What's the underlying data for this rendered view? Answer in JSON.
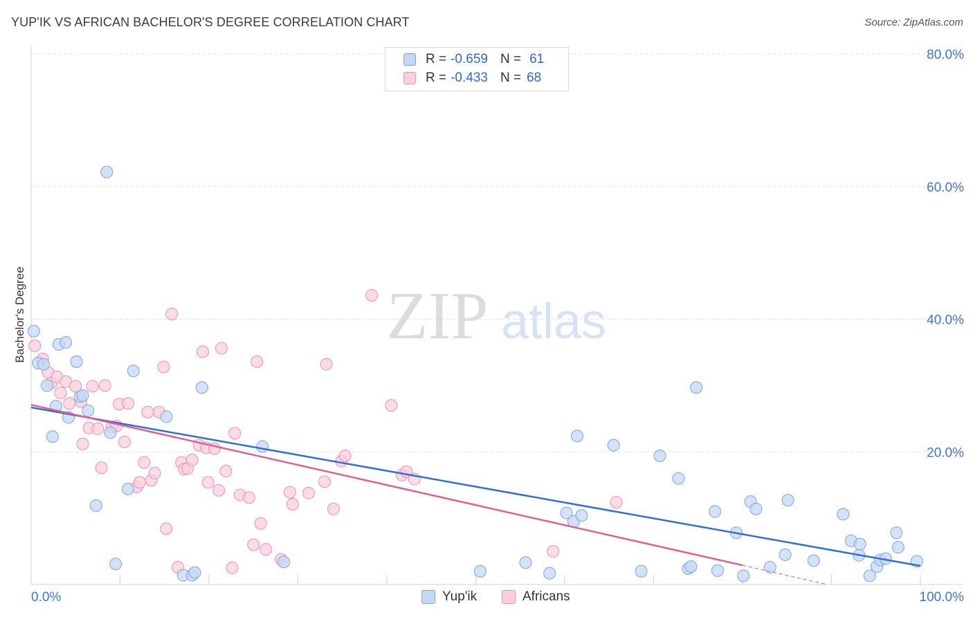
{
  "title": "YUP'IK VS AFRICAN BACHELOR'S DEGREE CORRELATION CHART",
  "source": "Source: ZipAtlas.com",
  "watermark": {
    "zip": "ZIP",
    "atlas": "atlas"
  },
  "legend": {
    "rows": [
      {
        "r_label": "R =",
        "r_value": "-0.659",
        "n_label": "N =",
        "n_value": "61",
        "fill": "#c5d8f5",
        "stroke": "#7aa3e0"
      },
      {
        "r_label": "R =",
        "r_value": "-0.433",
        "n_label": "N =",
        "n_value": "68",
        "fill": "#f9cfdd",
        "stroke": "#ee8fb0"
      }
    ]
  },
  "bottom_legend": [
    {
      "label": "Yup'ik",
      "fill": "#c5d8f5",
      "stroke": "#7aa3e0"
    },
    {
      "label": "Africans",
      "fill": "#f9cfdd",
      "stroke": "#ee8fb0"
    }
  ],
  "chart_data": {
    "type": "scatter",
    "title": "YUP'IK VS AFRICAN BACHELOR'S DEGREE CORRELATION CHART",
    "xlabel": "",
    "ylabel": "Bachelor's Degree",
    "xlim": [
      0,
      100
    ],
    "ylim": [
      0,
      80
    ],
    "x_tick_labels": [
      "0.0%",
      "100.0%"
    ],
    "y_ticks": [
      20,
      40,
      60,
      80
    ],
    "y_tick_labels": [
      "20.0%",
      "40.0%",
      "60.0%",
      "80.0%"
    ],
    "grid": true,
    "legend_position": "top-center",
    "series": [
      {
        "name": "Yup'ik",
        "color": "#7aa3e0",
        "fill": "#c5d8f5",
        "line_color": "#2f6fd4",
        "trend": {
          "x": [
            0,
            100
          ],
          "y": [
            26.7,
            2.8
          ]
        },
        "points": [
          [
            0.3,
            38.2
          ],
          [
            0.8,
            33.4
          ],
          [
            1.4,
            33.2
          ],
          [
            1.8,
            30.0
          ],
          [
            2.4,
            22.3
          ],
          [
            2.8,
            26.9
          ],
          [
            3.1,
            36.2
          ],
          [
            3.9,
            36.5
          ],
          [
            4.2,
            25.2
          ],
          [
            5.1,
            33.6
          ],
          [
            5.5,
            28.3
          ],
          [
            5.8,
            28.5
          ],
          [
            6.4,
            26.2
          ],
          [
            7.3,
            11.9
          ],
          [
            8.5,
            62.2
          ],
          [
            8.9,
            22.9
          ],
          [
            9.5,
            3.1
          ],
          [
            10.9,
            14.4
          ],
          [
            11.5,
            32.2
          ],
          [
            15.2,
            25.3
          ],
          [
            17.1,
            1.4
          ],
          [
            18.1,
            1.4
          ],
          [
            18.4,
            1.8
          ],
          [
            19.2,
            29.7
          ],
          [
            26.0,
            20.8
          ],
          [
            28.4,
            3.4
          ],
          [
            50.5,
            2.0
          ],
          [
            55.6,
            3.3
          ],
          [
            58.3,
            1.7
          ],
          [
            60.2,
            10.8
          ],
          [
            61.0,
            9.5
          ],
          [
            61.4,
            22.4
          ],
          [
            61.9,
            10.4
          ],
          [
            65.5,
            21.0
          ],
          [
            68.6,
            2.0
          ],
          [
            70.7,
            19.4
          ],
          [
            72.8,
            16.0
          ],
          [
            73.9,
            2.4
          ],
          [
            74.2,
            2.7
          ],
          [
            74.8,
            29.7
          ],
          [
            76.9,
            11.0
          ],
          [
            77.2,
            2.1
          ],
          [
            79.3,
            7.8
          ],
          [
            80.1,
            1.3
          ],
          [
            80.9,
            12.5
          ],
          [
            81.5,
            11.4
          ],
          [
            83.1,
            2.6
          ],
          [
            84.8,
            4.5
          ],
          [
            85.1,
            12.7
          ],
          [
            88.0,
            3.6
          ],
          [
            91.3,
            10.6
          ],
          [
            92.2,
            6.6
          ],
          [
            93.1,
            4.4
          ],
          [
            93.2,
            6.1
          ],
          [
            94.3,
            1.3
          ],
          [
            95.1,
            2.7
          ],
          [
            95.5,
            3.7
          ],
          [
            96.1,
            3.9
          ],
          [
            97.3,
            7.8
          ],
          [
            97.5,
            5.6
          ],
          [
            99.6,
            3.5
          ]
        ]
      },
      {
        "name": "Africans",
        "color": "#ee8fb0",
        "fill": "#f9cfdd",
        "line_color": "#e0608e",
        "trend": {
          "x": [
            0,
            80
          ],
          "y": [
            27.1,
            2.9
          ]
        },
        "trend_dashed": {
          "x": [
            80,
            100
          ],
          "y": [
            2.9,
            -3.2
          ]
        },
        "points": [
          [
            0.4,
            36.0
          ],
          [
            1.3,
            34.0
          ],
          [
            1.9,
            32.0
          ],
          [
            2.3,
            30.4
          ],
          [
            2.9,
            31.3
          ],
          [
            3.3,
            28.9
          ],
          [
            3.9,
            30.6
          ],
          [
            4.3,
            27.3
          ],
          [
            5.0,
            29.9
          ],
          [
            5.6,
            27.6
          ],
          [
            5.8,
            21.2
          ],
          [
            6.5,
            23.6
          ],
          [
            6.9,
            29.9
          ],
          [
            7.5,
            23.5
          ],
          [
            7.9,
            17.6
          ],
          [
            8.3,
            30.0
          ],
          [
            9.1,
            23.7
          ],
          [
            9.6,
            23.9
          ],
          [
            9.9,
            27.2
          ],
          [
            10.5,
            21.5
          ],
          [
            10.9,
            27.3
          ],
          [
            11.9,
            14.7
          ],
          [
            12.2,
            15.4
          ],
          [
            12.7,
            18.4
          ],
          [
            13.1,
            26.0
          ],
          [
            13.5,
            15.7
          ],
          [
            13.9,
            16.8
          ],
          [
            14.4,
            26.0
          ],
          [
            14.9,
            32.8
          ],
          [
            15.2,
            8.4
          ],
          [
            15.8,
            40.8
          ],
          [
            16.5,
            2.6
          ],
          [
            16.9,
            18.4
          ],
          [
            17.2,
            17.4
          ],
          [
            17.6,
            17.5
          ],
          [
            18.1,
            18.8
          ],
          [
            18.9,
            21.0
          ],
          [
            19.3,
            35.1
          ],
          [
            19.7,
            20.6
          ],
          [
            19.9,
            15.4
          ],
          [
            20.6,
            20.5
          ],
          [
            21.1,
            14.2
          ],
          [
            21.4,
            35.6
          ],
          [
            21.9,
            17.1
          ],
          [
            22.6,
            2.5
          ],
          [
            22.9,
            22.8
          ],
          [
            23.5,
            13.5
          ],
          [
            24.5,
            13.1
          ],
          [
            25.0,
            6.0
          ],
          [
            25.4,
            33.6
          ],
          [
            25.8,
            9.2
          ],
          [
            26.4,
            5.3
          ],
          [
            28.1,
            3.8
          ],
          [
            29.1,
            13.9
          ],
          [
            29.4,
            12.1
          ],
          [
            31.2,
            13.8
          ],
          [
            33.0,
            15.5
          ],
          [
            33.2,
            33.2
          ],
          [
            34.0,
            11.4
          ],
          [
            34.9,
            18.6
          ],
          [
            35.3,
            19.4
          ],
          [
            38.3,
            43.6
          ],
          [
            40.5,
            27.0
          ],
          [
            41.7,
            16.5
          ],
          [
            42.2,
            17.0
          ],
          [
            43.1,
            15.9
          ],
          [
            58.7,
            5.0
          ],
          [
            65.8,
            12.4
          ]
        ]
      }
    ]
  }
}
